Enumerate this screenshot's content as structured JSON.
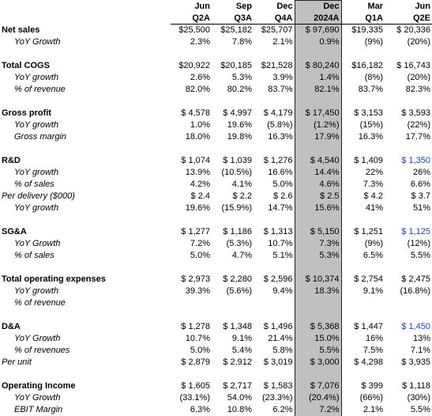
{
  "header": {
    "months": [
      "Jun",
      "Sep",
      "Dec",
      "Dec",
      "Mar",
      "Jun"
    ],
    "periods": [
      "Q2A",
      "Q3A",
      "Q4A",
      "2024A",
      "Q1A",
      "Q2E"
    ],
    "highlight_column": 3,
    "highlight_color": "#c0c0c0"
  },
  "sections": [
    {
      "title": "Net sales",
      "values": [
        "$25,500",
        "$25,182",
        "$25,707",
        "$ 97,690",
        "$19,335",
        "$ 20,336"
      ],
      "rows": [
        {
          "label": "YoY Growth",
          "values": [
            "2.3%",
            "7.8%",
            "2.1%",
            "0.9%",
            "(9%)",
            "(20%)"
          ]
        }
      ]
    },
    {
      "title": "Total COGS",
      "values": [
        "$20,922",
        "$20,185",
        "$21,528",
        "$ 80,240",
        "$16,182",
        "$ 16,743"
      ],
      "rows": [
        {
          "label": "YoY growth",
          "values": [
            "2.6%",
            "5.3%",
            "3.9%",
            "1.4%",
            "(8%)",
            "(20%)"
          ]
        },
        {
          "label": "% of revenue",
          "values": [
            "82.0%",
            "80.2%",
            "83.7%",
            "82.1%",
            "83.7%",
            "82.3%"
          ]
        }
      ]
    },
    {
      "title": "Gross profit",
      "values": [
        "$ 4,578",
        "$ 4,997",
        "$ 4,179",
        "$ 17,450",
        "$ 3,153",
        "$ 3,593"
      ],
      "rows": [
        {
          "label": "YoY growth",
          "values": [
            "1.0%",
            "19.6%",
            "(5.8%)",
            "(1.2%)",
            "(15%)",
            "(22%)"
          ]
        },
        {
          "label": "Gross margin",
          "values": [
            "18.0%",
            "19.8%",
            "16.3%",
            "17.9%",
            "16.3%",
            "17.7%"
          ]
        }
      ]
    },
    {
      "title": "R&D",
      "values": [
        "$ 1,074",
        "$ 1,039",
        "$ 1,276",
        "$ 4,540",
        "$ 1,409",
        "$ 1,350"
      ],
      "last_color": "#1a3fd6",
      "rows": [
        {
          "label": "YoY growth",
          "values": [
            "13.9%",
            "(10.5%)",
            "16.6%",
            "14.4%",
            "22%",
            "26%"
          ]
        },
        {
          "label": "% of sales",
          "values": [
            "4.2%",
            "4.1%",
            "5.0%",
            "4.6%",
            "7.3%",
            "6.6%"
          ]
        },
        {
          "label": "Per delivery ($000)",
          "indent": false,
          "values": [
            "$ 2.4",
            "$ 2.2",
            "$ 2.6",
            "$ 2.5",
            "$ 4.2",
            "$ 3.7"
          ]
        },
        {
          "label": "YoY growth",
          "values": [
            "19.6%",
            "(15.9%)",
            "14.7%",
            "15.6%",
            "41%",
            "51%"
          ]
        }
      ]
    },
    {
      "title": "SG&A",
      "values": [
        "$ 1,277",
        "$ 1,186",
        "$ 1,313",
        "$ 5,150",
        "$ 1,251",
        "$ 1,125"
      ],
      "last_color": "#1a3fd6",
      "rows": [
        {
          "label": "YoY Growth",
          "values": [
            "7.2%",
            "(5.3%)",
            "10.7%",
            "7.3%",
            "(9%)",
            "(12%)"
          ]
        },
        {
          "label": "% of sales",
          "values": [
            "5.0%",
            "4.7%",
            "5.1%",
            "5.3%",
            "6.5%",
            "5.5%"
          ]
        }
      ]
    },
    {
      "title": "Total operating expenses",
      "values": [
        "$ 2,973",
        "$ 2,280",
        "$ 2,596",
        "$ 10,374",
        "$ 2,754",
        "$ 2,475"
      ],
      "rows": [
        {
          "label": "YoY growth",
          "values": [
            "39.3%",
            "(5.6%)",
            "9.4%",
            "18.3%",
            "9.1%",
            "(16.8%)"
          ]
        },
        {
          "label": "% of revenue",
          "values": []
        }
      ]
    },
    {
      "title": "D&A",
      "values": [
        "$ 1,278",
        "$ 1,348",
        "$ 1,496",
        "$ 5,368",
        "$ 1,447",
        "$ 1,450"
      ],
      "last_color": "#1a3fd6",
      "rows": [
        {
          "label": "YoY Growth",
          "values": [
            "10.7%",
            "9.1%",
            "21.4%",
            "15.0%",
            "16%",
            "13%"
          ]
        },
        {
          "label": "% of revenues",
          "values": [
            "5.0%",
            "5.4%",
            "5.8%",
            "5.5%",
            "7.5%",
            "7.1%"
          ]
        },
        {
          "label": "Per unit",
          "indent": false,
          "values": [
            "$ 2,879",
            "$ 2,912",
            "$ 3,019",
            "$ 3,000",
            "$ 4,298",
            "$ 3,935"
          ]
        }
      ]
    },
    {
      "title": "Operating Income",
      "values": [
        "$ 1,605",
        "$ 2,717",
        "$ 1,583",
        "$ 7,076",
        "$ 399",
        "$ 1,118"
      ],
      "rows": [
        {
          "label": "YoY Growth",
          "values": [
            "(33.1%)",
            "54.0%",
            "(23.3%)",
            "(20.4%)",
            "(66%)",
            "(30%)"
          ]
        },
        {
          "label": "EBIT Margin",
          "values": [
            "6.3%",
            "10.8%",
            "6.2%",
            "7.2%",
            "2.1%",
            "5.5%"
          ]
        }
      ]
    }
  ]
}
